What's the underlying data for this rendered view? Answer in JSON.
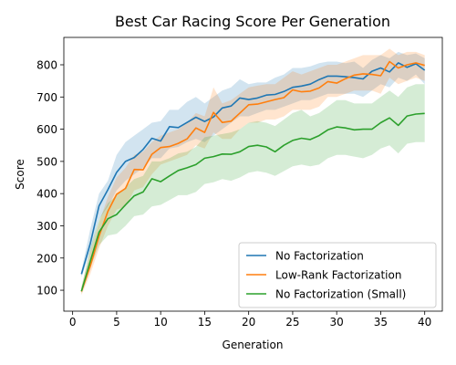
{
  "chart_data": {
    "type": "line",
    "title": "Best Car Racing Score Per Generation",
    "xlabel": "Generation",
    "ylabel": "Score",
    "xlim": [
      -1,
      42
    ],
    "ylim": [
      35,
      885
    ],
    "xticks": [
      0,
      5,
      10,
      15,
      20,
      25,
      30,
      35,
      40
    ],
    "yticks": [
      100,
      200,
      300,
      400,
      500,
      600,
      700,
      800
    ],
    "grid": false,
    "legend_position": "lower-right",
    "x": [
      1,
      2,
      3,
      4,
      5,
      6,
      7,
      8,
      9,
      10,
      11,
      12,
      13,
      14,
      15,
      16,
      17,
      18,
      19,
      20,
      21,
      22,
      23,
      24,
      25,
      26,
      27,
      28,
      29,
      30,
      31,
      32,
      33,
      34,
      35,
      36,
      37,
      38,
      39,
      40
    ],
    "series": [
      {
        "name": "No Factorization",
        "color": "#1f77b4",
        "values": [
          150,
          245,
          362,
          412,
          466,
          500,
          512,
          537,
          572,
          563,
          608,
          605,
          621,
          637,
          624,
          638,
          666,
          672,
          697,
          692,
          697,
          706,
          708,
          717,
          730,
          734,
          740,
          754,
          765,
          765,
          763,
          760,
          756,
          780,
          790,
          778,
          806,
          792,
          803,
          783
        ],
        "upper": [
          160,
          290,
          400,
          440,
          520,
          560,
          580,
          600,
          620,
          625,
          660,
          660,
          685,
          700,
          680,
          700,
          720,
          730,
          755,
          740,
          745,
          745,
          760,
          770,
          790,
          790,
          795,
          805,
          810,
          810,
          805,
          810,
          790,
          815,
          830,
          820,
          840,
          830,
          835,
          820
        ],
        "lower": [
          140,
          220,
          320,
          360,
          410,
          440,
          460,
          480,
          510,
          510,
          540,
          545,
          560,
          570,
          560,
          580,
          600,
          620,
          640,
          640,
          650,
          660,
          660,
          670,
          680,
          690,
          690,
          700,
          710,
          710,
          710,
          710,
          700,
          720,
          740,
          730,
          760,
          750,
          770,
          740
        ]
      },
      {
        "name": "Low-Rank Factorization",
        "color": "#ff7f0e",
        "values": [
          96,
          175,
          268,
          345,
          398,
          416,
          475,
          474,
          522,
          543,
          546,
          556,
          570,
          604,
          590,
          652,
          621,
          625,
          650,
          676,
          678,
          685,
          692,
          698,
          722,
          716,
          718,
          728,
          748,
          743,
          757,
          768,
          772,
          770,
          766,
          810,
          790,
          800,
          806,
          798
        ],
        "upper": [
          110,
          220,
          310,
          390,
          450,
          480,
          520,
          530,
          560,
          580,
          590,
          600,
          620,
          650,
          640,
          730,
          680,
          690,
          710,
          730,
          735,
          740,
          740,
          760,
          780,
          770,
          780,
          790,
          800,
          800,
          810,
          820,
          830,
          830,
          830,
          850,
          830,
          840,
          840,
          830
        ],
        "lower": [
          85,
          150,
          230,
          300,
          350,
          360,
          410,
          420,
          460,
          490,
          500,
          510,
          520,
          550,
          540,
          590,
          570,
          570,
          600,
          620,
          620,
          630,
          630,
          640,
          660,
          660,
          660,
          670,
          700,
          700,
          710,
          720,
          720,
          720,
          710,
          760,
          740,
          750,
          760,
          750
        ]
      },
      {
        "name": "No Factorization (Small)",
        "color": "#2ca02c",
        "values": [
          97,
          190,
          280,
          322,
          335,
          365,
          393,
          405,
          446,
          437,
          455,
          472,
          480,
          490,
          510,
          515,
          523,
          522,
          530,
          546,
          550,
          545,
          530,
          550,
          565,
          572,
          568,
          580,
          598,
          607,
          604,
          598,
          600,
          600,
          620,
          635,
          612,
          641,
          647,
          649
        ],
        "upper": [
          110,
          230,
          320,
          370,
          395,
          420,
          445,
          455,
          500,
          500,
          510,
          525,
          530,
          545,
          575,
          580,
          585,
          590,
          600,
          620,
          625,
          620,
          610,
          630,
          650,
          660,
          640,
          650,
          670,
          690,
          690,
          680,
          680,
          680,
          700,
          720,
          700,
          730,
          740,
          740
        ],
        "lower": [
          90,
          170,
          240,
          270,
          275,
          300,
          330,
          335,
          360,
          365,
          380,
          395,
          395,
          405,
          430,
          435,
          445,
          440,
          450,
          465,
          470,
          465,
          455,
          470,
          485,
          490,
          485,
          490,
          510,
          520,
          520,
          515,
          510,
          520,
          540,
          550,
          525,
          555,
          560,
          560
        ]
      }
    ]
  }
}
